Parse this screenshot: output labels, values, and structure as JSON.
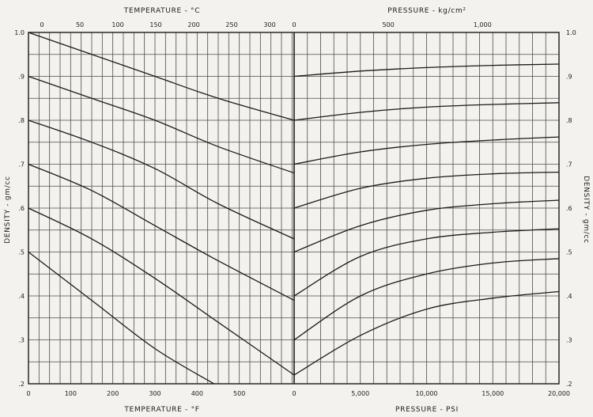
{
  "chart_data": {
    "type": "line",
    "grid": true,
    "left_panel": {
      "title_top": "TEMPERATURE - °C",
      "title_bottom": "TEMPERATURE - °F",
      "x_top_ticks": [
        "0",
        "50",
        "100",
        "150",
        "200",
        "250",
        "300"
      ],
      "x_bottom_ticks": [
        "0",
        "100",
        "200",
        "300",
        "400",
        "500"
      ],
      "xlim_F": [
        0,
        630
      ],
      "series": [
        {
          "start_density": 1.0,
          "points": [
            [
              0,
              1.0
            ],
            [
              150,
              0.95
            ],
            [
              300,
              0.9
            ],
            [
              450,
              0.85
            ],
            [
              630,
              0.8
            ]
          ]
        },
        {
          "start_density": 0.9,
          "points": [
            [
              0,
              0.9
            ],
            [
              150,
              0.85
            ],
            [
              300,
              0.8
            ],
            [
              450,
              0.74
            ],
            [
              630,
              0.68
            ]
          ]
        },
        {
          "start_density": 0.8,
          "points": [
            [
              0,
              0.8
            ],
            [
              150,
              0.75
            ],
            [
              300,
              0.69
            ],
            [
              450,
              0.61
            ],
            [
              630,
              0.53
            ]
          ]
        },
        {
          "start_density": 0.7,
          "points": [
            [
              0,
              0.7
            ],
            [
              150,
              0.64
            ],
            [
              300,
              0.56
            ],
            [
              450,
              0.48
            ],
            [
              630,
              0.39
            ]
          ]
        },
        {
          "start_density": 0.6,
          "points": [
            [
              0,
              0.6
            ],
            [
              150,
              0.53
            ],
            [
              300,
              0.44
            ],
            [
              450,
              0.34
            ],
            [
              630,
              0.22
            ]
          ]
        },
        {
          "start_density": 0.5,
          "points": [
            [
              0,
              0.5
            ],
            [
              150,
              0.39
            ],
            [
              300,
              0.28
            ],
            [
              440,
              0.2
            ]
          ]
        }
      ]
    },
    "right_panel": {
      "title_top": "PRESSURE - kg/cm²",
      "title_bottom": "PRESSURE - PSI",
      "x_top_ticks": [
        "0",
        "500",
        "1,000"
      ],
      "x_bottom_ticks": [
        "0",
        "5,000",
        "10,000",
        "15,000",
        "20,000"
      ],
      "xlim_psi": [
        0,
        20000
      ],
      "series": [
        {
          "start_density": 0.9,
          "points": [
            [
              0,
              0.9
            ],
            [
              5000,
              0.912
            ],
            [
              10000,
              0.92
            ],
            [
              15000,
              0.925
            ],
            [
              20000,
              0.928
            ]
          ]
        },
        {
          "start_density": 0.8,
          "points": [
            [
              0,
              0.8
            ],
            [
              5000,
              0.818
            ],
            [
              10000,
              0.83
            ],
            [
              15000,
              0.836
            ],
            [
              20000,
              0.84
            ]
          ]
        },
        {
          "start_density": 0.7,
          "points": [
            [
              0,
              0.7
            ],
            [
              5000,
              0.728
            ],
            [
              10000,
              0.745
            ],
            [
              15000,
              0.755
            ],
            [
              20000,
              0.762
            ]
          ]
        },
        {
          "start_density": 0.6,
          "points": [
            [
              0,
              0.6
            ],
            [
              5000,
              0.645
            ],
            [
              10000,
              0.668
            ],
            [
              15000,
              0.678
            ],
            [
              20000,
              0.682
            ]
          ]
        },
        {
          "start_density": 0.5,
          "points": [
            [
              0,
              0.5
            ],
            [
              5000,
              0.56
            ],
            [
              10000,
              0.595
            ],
            [
              15000,
              0.61
            ],
            [
              20000,
              0.618
            ]
          ]
        },
        {
          "start_density": 0.4,
          "points": [
            [
              0,
              0.4
            ],
            [
              5000,
              0.49
            ],
            [
              10000,
              0.53
            ],
            [
              15000,
              0.545
            ],
            [
              20000,
              0.553
            ]
          ]
        },
        {
          "start_density": 0.3,
          "points": [
            [
              0,
              0.3
            ],
            [
              5000,
              0.4
            ],
            [
              10000,
              0.45
            ],
            [
              15000,
              0.475
            ],
            [
              20000,
              0.485
            ]
          ]
        },
        {
          "start_density": 0.22,
          "points": [
            [
              0,
              0.22
            ],
            [
              5000,
              0.31
            ],
            [
              10000,
              0.37
            ],
            [
              15000,
              0.395
            ],
            [
              20000,
              0.41
            ]
          ]
        }
      ]
    },
    "y_label_left": "DENSITY - gm/cc",
    "y_label_right": "DENSITY - gm/cc",
    "ylim": [
      0.2,
      1.0
    ],
    "y_ticks": [
      "1.0",
      ".9",
      ".8",
      ".7",
      ".6",
      ".5",
      ".4",
      ".3",
      ".2"
    ]
  }
}
